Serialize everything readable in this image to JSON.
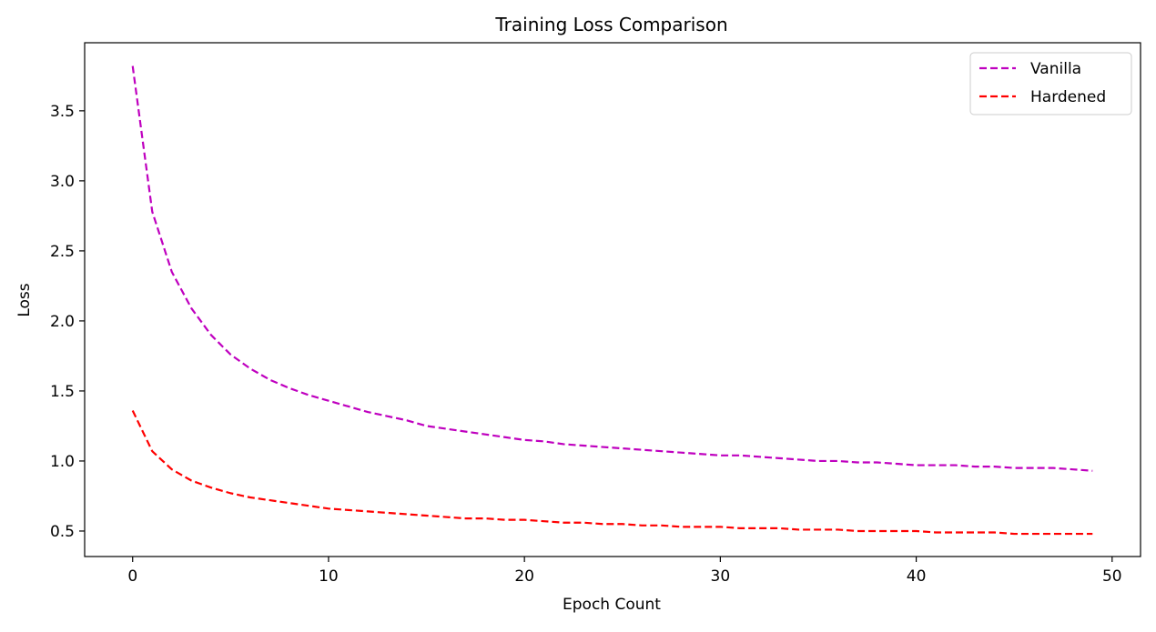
{
  "chart_data": {
    "type": "line",
    "title": "Training Loss Comparison",
    "xlabel": "Epoch Count",
    "ylabel": "Loss",
    "xlim": [
      -2.45,
      51.45
    ],
    "ylim": [
      0.318,
      3.986
    ],
    "xticks": [
      0,
      10,
      20,
      30,
      40,
      50
    ],
    "yticks": [
      0.5,
      1.0,
      1.5,
      2.0,
      2.5,
      3.0,
      3.5
    ],
    "grid": false,
    "legend_position": "top-right",
    "x": [
      0,
      1,
      2,
      3,
      4,
      5,
      6,
      7,
      8,
      9,
      10,
      11,
      12,
      13,
      14,
      15,
      16,
      17,
      18,
      19,
      20,
      21,
      22,
      23,
      24,
      25,
      26,
      27,
      28,
      29,
      30,
      31,
      32,
      33,
      34,
      35,
      36,
      37,
      38,
      39,
      40,
      41,
      42,
      43,
      44,
      45,
      46,
      47,
      48,
      49
    ],
    "series": [
      {
        "name": "Vanilla",
        "color": "#bf00bf",
        "line_style": "dashed",
        "values": [
          3.82,
          2.78,
          2.35,
          2.09,
          1.9,
          1.76,
          1.66,
          1.58,
          1.52,
          1.47,
          1.43,
          1.39,
          1.35,
          1.32,
          1.29,
          1.25,
          1.23,
          1.21,
          1.19,
          1.17,
          1.15,
          1.14,
          1.12,
          1.11,
          1.1,
          1.09,
          1.08,
          1.07,
          1.06,
          1.05,
          1.04,
          1.04,
          1.03,
          1.02,
          1.01,
          1.0,
          1.0,
          0.99,
          0.99,
          0.98,
          0.97,
          0.97,
          0.97,
          0.96,
          0.96,
          0.95,
          0.95,
          0.95,
          0.94,
          0.93
        ]
      },
      {
        "name": "Hardened",
        "color": "#ff0000",
        "line_style": "dashed",
        "values": [
          1.36,
          1.07,
          0.94,
          0.86,
          0.81,
          0.77,
          0.74,
          0.72,
          0.7,
          0.68,
          0.66,
          0.65,
          0.64,
          0.63,
          0.62,
          0.61,
          0.6,
          0.59,
          0.59,
          0.58,
          0.58,
          0.57,
          0.56,
          0.56,
          0.55,
          0.55,
          0.54,
          0.54,
          0.53,
          0.53,
          0.53,
          0.52,
          0.52,
          0.52,
          0.51,
          0.51,
          0.51,
          0.5,
          0.5,
          0.5,
          0.5,
          0.49,
          0.49,
          0.49,
          0.49,
          0.48,
          0.48,
          0.48,
          0.48,
          0.48
        ]
      }
    ]
  }
}
